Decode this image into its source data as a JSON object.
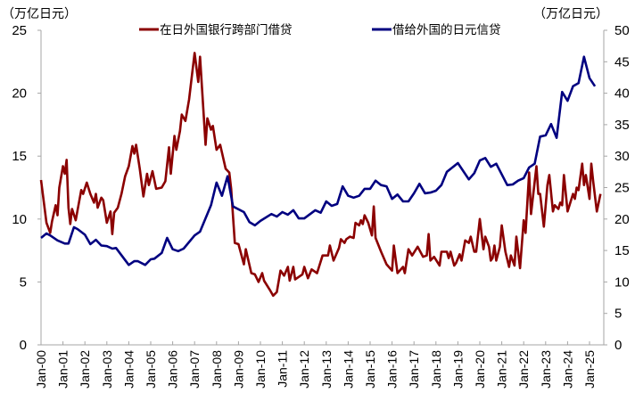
{
  "chart_data": {
    "type": "line",
    "title": "",
    "left_axis": {
      "label": "（万亿日元）",
      "ylim": [
        0,
        25
      ],
      "ticks": [
        "0",
        "5",
        "10",
        "15",
        "20",
        "25"
      ]
    },
    "right_axis": {
      "label": "（万亿日元）",
      "ylim": [
        0,
        50
      ],
      "ticks": [
        "0",
        "5",
        "10",
        "15",
        "20",
        "25",
        "30",
        "35",
        "40",
        "45",
        "50"
      ]
    },
    "x_ticks": [
      "Jan-00",
      "Jan-01",
      "Jan-02",
      "Jan-03",
      "Jan-04",
      "Jan-05",
      "Jan-06",
      "Jan-07",
      "Jan-08",
      "Jan-09",
      "Jan-10",
      "Jan-11",
      "Jan-12",
      "Jan-13",
      "Jan-14",
      "Jan-15",
      "Jan-16",
      "Jan-17",
      "Jan-18",
      "Jan-19",
      "Jan-20",
      "Jan-21",
      "Jan-22",
      "Jan-23",
      "Jan-24",
      "Jan-25"
    ],
    "x_range": [
      "2000-01",
      "2025-08"
    ],
    "grid": false,
    "legend_position": "top",
    "series": [
      {
        "name": "在日外国银行跨部门借贷",
        "axis": "left",
        "color": "#8b0000",
        "points": [
          [
            "2000-01",
            13.1
          ],
          [
            "2000-04",
            9.7
          ],
          [
            "2000-06",
            8.9
          ],
          [
            "2000-07",
            9.8
          ],
          [
            "2000-09",
            11.1
          ],
          [
            "2000-10",
            10.3
          ],
          [
            "2000-11",
            12.5
          ],
          [
            "2001-01",
            14.2
          ],
          [
            "2001-02",
            13.6
          ],
          [
            "2001-03",
            14.7
          ],
          [
            "2001-04",
            10.9
          ],
          [
            "2001-05",
            9.6
          ],
          [
            "2001-06",
            10.8
          ],
          [
            "2001-08",
            9.9
          ],
          [
            "2001-11",
            12.3
          ],
          [
            "2001-12",
            12.0
          ],
          [
            "2002-02",
            12.9
          ],
          [
            "2002-04",
            12.0
          ],
          [
            "2002-06",
            11.3
          ],
          [
            "2002-07",
            12.0
          ],
          [
            "2002-08",
            10.9
          ],
          [
            "2002-10",
            11.7
          ],
          [
            "2002-11",
            11.5
          ],
          [
            "2003-01",
            9.7
          ],
          [
            "2003-03",
            10.6
          ],
          [
            "2003-04",
            8.8
          ],
          [
            "2003-05",
            10.5
          ],
          [
            "2003-07",
            10.9
          ],
          [
            "2003-09",
            12.0
          ],
          [
            "2003-11",
            13.4
          ],
          [
            "2004-01",
            14.2
          ],
          [
            "2004-03",
            15.8
          ],
          [
            "2004-04",
            15.2
          ],
          [
            "2004-05",
            15.9
          ],
          [
            "2004-07",
            14.0
          ],
          [
            "2004-09",
            11.8
          ],
          [
            "2004-11",
            13.6
          ],
          [
            "2004-12",
            12.7
          ],
          [
            "2005-02",
            13.8
          ],
          [
            "2005-04",
            12.4
          ],
          [
            "2005-07",
            12.5
          ],
          [
            "2005-09",
            13.0
          ],
          [
            "2005-11",
            15.7
          ],
          [
            "2005-12",
            13.6
          ],
          [
            "2006-02",
            16.6
          ],
          [
            "2006-03",
            15.5
          ],
          [
            "2006-05",
            17.0
          ],
          [
            "2006-06",
            18.3
          ],
          [
            "2006-08",
            17.8
          ],
          [
            "2006-10",
            19.5
          ],
          [
            "2007-01",
            23.2
          ],
          [
            "2007-03",
            20.9
          ],
          [
            "2007-04",
            22.9
          ],
          [
            "2007-07",
            15.9
          ],
          [
            "2007-08",
            18.0
          ],
          [
            "2007-10",
            17.1
          ],
          [
            "2007-11",
            17.4
          ],
          [
            "2008-01",
            15.5
          ],
          [
            "2008-03",
            15.9
          ],
          [
            "2008-06",
            14.0
          ],
          [
            "2008-08",
            13.7
          ],
          [
            "2008-09",
            12.4
          ],
          [
            "2008-11",
            8.1
          ],
          [
            "2009-01",
            8.0
          ],
          [
            "2009-04",
            6.4
          ],
          [
            "2009-05",
            7.6
          ],
          [
            "2009-08",
            5.7
          ],
          [
            "2009-10",
            5.6
          ],
          [
            "2009-12",
            5.0
          ],
          [
            "2010-02",
            5.7
          ],
          [
            "2010-03",
            5.1
          ],
          [
            "2010-06",
            4.4
          ],
          [
            "2010-08",
            3.9
          ],
          [
            "2010-10",
            4.2
          ],
          [
            "2010-12",
            5.9
          ],
          [
            "2011-02",
            5.5
          ],
          [
            "2011-04",
            6.2
          ],
          [
            "2011-05",
            5.1
          ],
          [
            "2011-07",
            6.2
          ],
          [
            "2011-08",
            5.2
          ],
          [
            "2011-12",
            5.6
          ],
          [
            "2012-01",
            6.2
          ],
          [
            "2012-03",
            5.3
          ],
          [
            "2012-05",
            6.0
          ],
          [
            "2012-08",
            5.7
          ],
          [
            "2012-11",
            7.1
          ],
          [
            "2013-02",
            7.1
          ],
          [
            "2013-03",
            7.9
          ],
          [
            "2013-05",
            6.7
          ],
          [
            "2013-08",
            7.7
          ],
          [
            "2013-09",
            8.4
          ],
          [
            "2013-11",
            8.1
          ],
          [
            "2013-12",
            8.4
          ],
          [
            "2014-02",
            8.6
          ],
          [
            "2014-04",
            8.5
          ],
          [
            "2014-05",
            9.7
          ],
          [
            "2014-07",
            9.5
          ],
          [
            "2014-08",
            9.9
          ],
          [
            "2014-09",
            9.6
          ],
          [
            "2014-10",
            10.3
          ],
          [
            "2014-12",
            9.7
          ],
          [
            "2015-02",
            8.7
          ],
          [
            "2015-03",
            11.0
          ],
          [
            "2015-04",
            8.5
          ],
          [
            "2015-07",
            7.4
          ],
          [
            "2015-10",
            6.4
          ],
          [
            "2016-01",
            5.9
          ],
          [
            "2016-02",
            7.9
          ],
          [
            "2016-04",
            5.7
          ],
          [
            "2016-07",
            6.2
          ],
          [
            "2016-08",
            5.7
          ],
          [
            "2016-10",
            7.6
          ],
          [
            "2016-12",
            7.1
          ],
          [
            "2017-03",
            7.8
          ],
          [
            "2017-06",
            7.0
          ],
          [
            "2017-08",
            7.1
          ],
          [
            "2017-09",
            8.8
          ],
          [
            "2017-10",
            6.7
          ],
          [
            "2017-12",
            7.0
          ],
          [
            "2018-03",
            6.3
          ],
          [
            "2018-04",
            7.4
          ],
          [
            "2018-07",
            7.4
          ],
          [
            "2018-08",
            6.9
          ],
          [
            "2018-09",
            7.4
          ],
          [
            "2018-11",
            6.3
          ],
          [
            "2018-12",
            6.5
          ],
          [
            "2019-02",
            7.2
          ],
          [
            "2019-03",
            6.7
          ],
          [
            "2019-05",
            8.3
          ],
          [
            "2019-07",
            8.1
          ],
          [
            "2019-08",
            8.6
          ],
          [
            "2019-10",
            7.4
          ],
          [
            "2019-11",
            7.4
          ],
          [
            "2020-01",
            10.0
          ],
          [
            "2020-03",
            7.6
          ],
          [
            "2020-04",
            8.6
          ],
          [
            "2020-06",
            7.8
          ],
          [
            "2020-07",
            6.7
          ],
          [
            "2020-08",
            6.9
          ],
          [
            "2020-09",
            7.9
          ],
          [
            "2020-10",
            6.7
          ],
          [
            "2020-12",
            7.8
          ],
          [
            "2021-01",
            9.5
          ],
          [
            "2021-03",
            7.4
          ],
          [
            "2021-05",
            6.2
          ],
          [
            "2021-06",
            7.1
          ],
          [
            "2021-08",
            6.3
          ],
          [
            "2021-09",
            8.6
          ],
          [
            "2021-11",
            6.1
          ],
          [
            "2022-01",
            9.9
          ],
          [
            "2022-02",
            8.9
          ],
          [
            "2022-04",
            13.7
          ],
          [
            "2022-05",
            10.4
          ],
          [
            "2022-08",
            14.2
          ],
          [
            "2022-09",
            12.0
          ],
          [
            "2022-10",
            12.0
          ],
          [
            "2022-12",
            9.4
          ],
          [
            "2023-02",
            12.7
          ],
          [
            "2023-03",
            13.5
          ],
          [
            "2023-05",
            10.6
          ],
          [
            "2023-06",
            11.1
          ],
          [
            "2023-08",
            10.8
          ],
          [
            "2023-09",
            11.3
          ],
          [
            "2023-10",
            11.1
          ],
          [
            "2023-11",
            13.5
          ],
          [
            "2024-01",
            10.6
          ],
          [
            "2024-04",
            12.0
          ],
          [
            "2024-05",
            11.6
          ],
          [
            "2024-06",
            12.5
          ],
          [
            "2024-07",
            12.3
          ],
          [
            "2024-09",
            14.4
          ],
          [
            "2024-10",
            12.7
          ],
          [
            "2024-11",
            13.5
          ],
          [
            "2025-01",
            11.6
          ],
          [
            "2025-02",
            14.4
          ],
          [
            "2025-03",
            13.0
          ],
          [
            "2025-05",
            10.6
          ],
          [
            "2025-07",
            12.0
          ]
        ]
      },
      {
        "name": "借给外国的日元信贷",
        "axis": "right",
        "color": "#000080",
        "points": [
          [
            "2000-01",
            17.0
          ],
          [
            "2000-04",
            17.7
          ],
          [
            "2000-06",
            17.4
          ],
          [
            "2000-10",
            16.6
          ],
          [
            "2001-02",
            16.1
          ],
          [
            "2001-04",
            16.1
          ],
          [
            "2001-07",
            18.7
          ],
          [
            "2001-09",
            18.4
          ],
          [
            "2002-01",
            17.5
          ],
          [
            "2002-04",
            16.0
          ],
          [
            "2002-07",
            16.7
          ],
          [
            "2002-10",
            15.8
          ],
          [
            "2003-01",
            15.7
          ],
          [
            "2003-04",
            15.3
          ],
          [
            "2003-06",
            15.4
          ],
          [
            "2004-01",
            12.7
          ],
          [
            "2004-04",
            13.3
          ],
          [
            "2004-06",
            13.3
          ],
          [
            "2004-10",
            12.7
          ],
          [
            "2005-01",
            13.6
          ],
          [
            "2005-03",
            13.7
          ],
          [
            "2005-07",
            14.6
          ],
          [
            "2005-10",
            17.0
          ],
          [
            "2006-01",
            15.2
          ],
          [
            "2006-04",
            14.9
          ],
          [
            "2006-07",
            15.3
          ],
          [
            "2007-01",
            17.4
          ],
          [
            "2007-04",
            18.0
          ],
          [
            "2007-10",
            22.2
          ],
          [
            "2008-01",
            25.8
          ],
          [
            "2008-04",
            23.7
          ],
          [
            "2008-07",
            26.8
          ],
          [
            "2008-10",
            22.0
          ],
          [
            "2009-04",
            21.1
          ],
          [
            "2009-07",
            19.5
          ],
          [
            "2009-10",
            19.0
          ],
          [
            "2010-01",
            19.7
          ],
          [
            "2010-07",
            20.8
          ],
          [
            "2010-10",
            20.4
          ],
          [
            "2011-01",
            21.1
          ],
          [
            "2011-04",
            20.7
          ],
          [
            "2011-07",
            21.4
          ],
          [
            "2011-10",
            20.1
          ],
          [
            "2012-01",
            20.1
          ],
          [
            "2012-07",
            21.4
          ],
          [
            "2012-10",
            21.0
          ],
          [
            "2013-01",
            22.8
          ],
          [
            "2013-04",
            22.1
          ],
          [
            "2013-07",
            22.4
          ],
          [
            "2013-10",
            25.2
          ],
          [
            "2014-01",
            23.7
          ],
          [
            "2014-04",
            23.4
          ],
          [
            "2014-07",
            23.7
          ],
          [
            "2014-10",
            24.8
          ],
          [
            "2015-01",
            24.8
          ],
          [
            "2015-04",
            26.1
          ],
          [
            "2015-07",
            25.4
          ],
          [
            "2015-10",
            25.2
          ],
          [
            "2016-01",
            23.2
          ],
          [
            "2016-04",
            23.9
          ],
          [
            "2016-07",
            22.8
          ],
          [
            "2016-10",
            22.8
          ],
          [
            "2017-01",
            24.1
          ],
          [
            "2017-04",
            25.6
          ],
          [
            "2017-07",
            24.1
          ],
          [
            "2017-10",
            24.2
          ],
          [
            "2018-01",
            24.5
          ],
          [
            "2018-04",
            25.4
          ],
          [
            "2018-07",
            27.5
          ],
          [
            "2019-01",
            28.9
          ],
          [
            "2019-07",
            26.3
          ],
          [
            "2019-10",
            27.3
          ],
          [
            "2020-01",
            29.3
          ],
          [
            "2020-04",
            29.7
          ],
          [
            "2020-07",
            28.3
          ],
          [
            "2020-10",
            28.8
          ],
          [
            "2021-04",
            25.4
          ],
          [
            "2021-07",
            25.5
          ],
          [
            "2021-10",
            26.1
          ],
          [
            "2022-01",
            26.5
          ],
          [
            "2022-04",
            28.2
          ],
          [
            "2022-07",
            28.8
          ],
          [
            "2022-10",
            33.1
          ],
          [
            "2023-01",
            33.3
          ],
          [
            "2023-04",
            35.1
          ],
          [
            "2023-07",
            32.9
          ],
          [
            "2023-10",
            40.2
          ],
          [
            "2024-01",
            38.8
          ],
          [
            "2024-04",
            41.1
          ],
          [
            "2024-07",
            41.6
          ],
          [
            "2024-10",
            45.8
          ],
          [
            "2025-01",
            42.4
          ],
          [
            "2025-04",
            41.1
          ]
        ]
      }
    ]
  }
}
